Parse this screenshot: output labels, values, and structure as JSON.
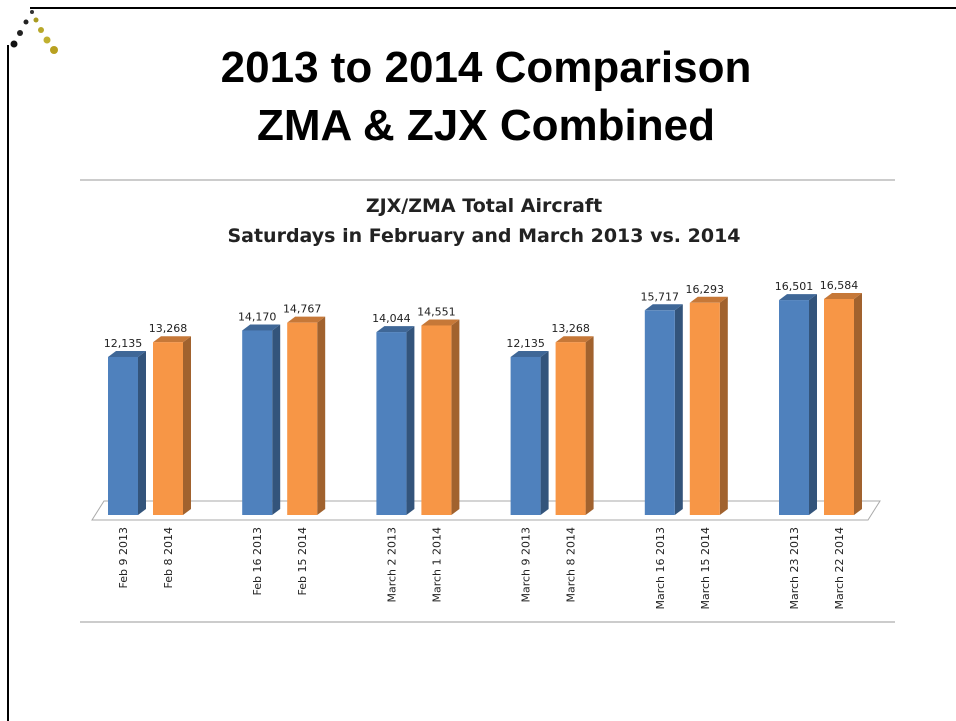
{
  "slide_title": [
    "2013 to 2014 Comparison",
    "ZMA & ZJX Combined"
  ],
  "chart_data": {
    "type": "bar3d",
    "title": [
      "ZJX/ZMA Total Aircraft",
      "Saturdays in February and March 2013 vs. 2014"
    ],
    "categories": [
      "Feb 9 2013",
      "Feb 8 2014",
      "Feb 16 2013",
      "Feb 15 2014",
      "March 2 2013",
      "March 1 2014",
      "March 9 2013",
      "March 8 2014",
      "March 16 2013",
      "March 15 2014",
      "March 23 2013",
      "March 22 2014"
    ],
    "values": [
      12135,
      13268,
      14170,
      14767,
      14044,
      14551,
      12135,
      13268,
      15717,
      16293,
      16501,
      16584
    ],
    "value_labels": [
      "12,135",
      "13,268",
      "14,170",
      "14,767",
      "14,044",
      "14,551",
      "12,135",
      "13,268",
      "15,717",
      "16,293",
      "16,501",
      "16,584"
    ],
    "colors": [
      "#4f81bd",
      "#f79646",
      "#4f81bd",
      "#f79646",
      "#4f81bd",
      "#f79646",
      "#4f81bd",
      "#f79646",
      "#4f81bd",
      "#f79646",
      "#4f81bd",
      "#f79646"
    ]
  }
}
